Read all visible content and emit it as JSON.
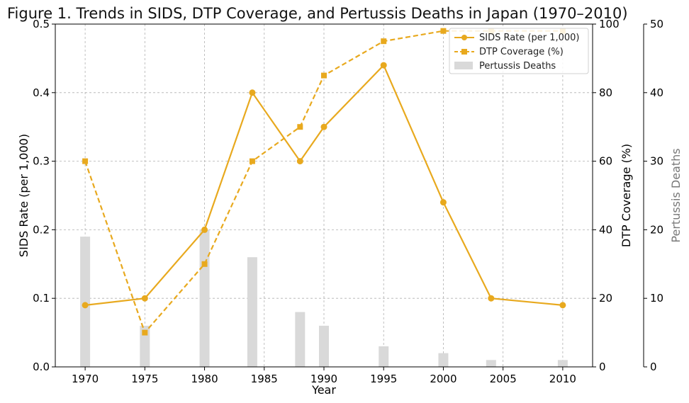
{
  "chart_data": {
    "type": "line",
    "title": "Figure 1. Trends in SIDS, DTP Coverage, and Pertussis Deaths in Japan (1970–2010)",
    "xlabel": "Year",
    "ylabel": "SIDS Rate (per 1,000)",
    "ylabel_right": "DTP Coverage (%)",
    "ylabel_right2": "Pertussis Deaths",
    "xlim": [
      1967.5,
      2012.5
    ],
    "xticks": [
      1970,
      1975,
      1980,
      1985,
      1990,
      1995,
      2000,
      2005,
      2010
    ],
    "ylim": [
      0,
      0.5
    ],
    "yticks": [
      "0.0",
      "0.1",
      "0.2",
      "0.3",
      "0.4",
      "0.5"
    ],
    "ylim_right": [
      0,
      100
    ],
    "yticks_right": [
      "0",
      "20",
      "40",
      "60",
      "80",
      "100"
    ],
    "ylim_right2": [
      0,
      50
    ],
    "yticks_right2": [
      "0",
      "10",
      "20",
      "30",
      "40",
      "50"
    ],
    "grid": true,
    "legend_position": "top-right",
    "colors": {
      "line": "#E8A91E",
      "bar": "#D9D9D9",
      "right2_label": "#777777"
    },
    "series": [
      {
        "name": "SIDS Rate (per 1,000)",
        "kind": "line-solid-circle",
        "axis": "left",
        "x": [
          1970,
          1975,
          1980,
          1984,
          1988,
          1990,
          1995,
          2000,
          2004,
          2010
        ],
        "values": [
          0.09,
          0.1,
          0.2,
          0.4,
          0.3,
          0.35,
          0.44,
          0.24,
          0.1,
          0.09
        ]
      },
      {
        "name": "DTP Coverage (%)",
        "kind": "line-dashed-square",
        "axis": "right",
        "x": [
          1970,
          1975,
          1980,
          1984,
          1988,
          1990,
          1995,
          2000,
          2004,
          2010
        ],
        "values": [
          60,
          10,
          30,
          60,
          70,
          85,
          95,
          98,
          98,
          98
        ]
      },
      {
        "name": "Pertussis Deaths",
        "kind": "bar",
        "axis": "right2",
        "x": [
          1970,
          1975,
          1980,
          1984,
          1988,
          1990,
          1995,
          2000,
          2004,
          2010
        ],
        "values": [
          19,
          6,
          20,
          16,
          8,
          6,
          3,
          2,
          1,
          1
        ]
      }
    ]
  }
}
